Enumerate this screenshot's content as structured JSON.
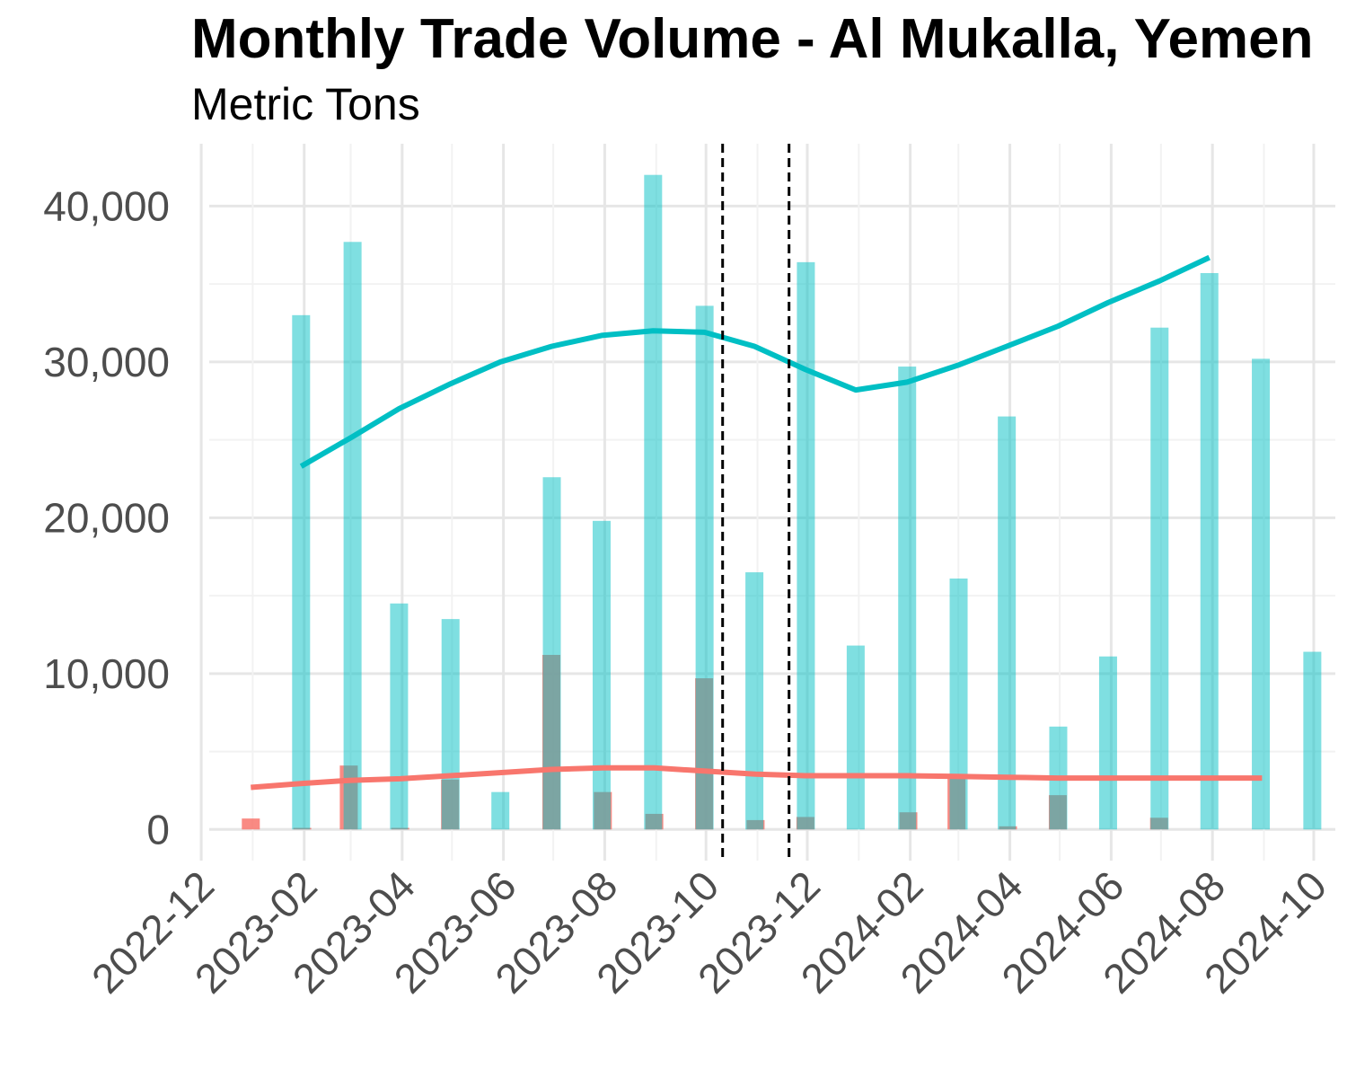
{
  "chart_data": {
    "type": "bar",
    "title": "Monthly Trade Volume - Al Mukalla, Yemen",
    "subtitle": "Metric Tons",
    "xlabel": "",
    "ylabel": "",
    "x_ticks": [
      "2022-12",
      "2023-02",
      "2023-04",
      "2023-06",
      "2023-08",
      "2023-10",
      "2023-12",
      "2024-02",
      "2024-04",
      "2024-06",
      "2024-08",
      "2024-10"
    ],
    "y_ticks": [
      "0",
      "10,000",
      "20,000",
      "30,000",
      "40,000"
    ],
    "ylim": [
      -2000,
      44000
    ],
    "xlim": [
      "2022-11-25",
      "2024-10-14"
    ],
    "grid": true,
    "months": [
      "2023-01",
      "2023-02",
      "2023-03",
      "2023-04",
      "2023-05",
      "2023-06",
      "2023-07",
      "2023-08",
      "2023-09",
      "2023-10",
      "2023-11",
      "2023-12",
      "2024-01",
      "2024-02",
      "2024-03",
      "2024-04",
      "2024-05",
      "2024-06",
      "2024-07",
      "2024-08",
      "2024-09"
    ],
    "series": [
      {
        "color": "#f8766d",
        "bar_opacity": 0.85,
        "values": [
          700,
          100,
          4100,
          100,
          3200,
          0,
          11200,
          2400,
          1000,
          9700,
          600,
          800,
          0,
          1100,
          3300,
          200,
          2200,
          0,
          750,
          0,
          0
        ],
        "trend": [
          2700,
          2950,
          3150,
          3250,
          3450,
          3650,
          3850,
          3950,
          3950,
          3750,
          3550,
          3450,
          3450,
          3450,
          3400,
          3350,
          3300,
          3300,
          3300,
          3300,
          3300
        ]
      },
      {
        "color": "#00bfc4",
        "bar_opacity": 0.5,
        "values": [
          33000,
          37700,
          14500,
          13500,
          2400,
          22600,
          19800,
          42000,
          33600,
          16500,
          36400,
          11800,
          29700,
          16100,
          26500,
          6600,
          11100,
          32200,
          35700,
          30200,
          11400
        ],
        "trend": [
          23300,
          25200,
          27000,
          28600,
          30000,
          31000,
          31700,
          32000,
          31900,
          31000,
          29500,
          28200,
          28700,
          29800,
          31000,
          32300,
          33800,
          35200,
          36700,
          null,
          null
        ]
      }
    ],
    "events": [
      {
        "date": "2023-10-11",
        "style": "dashed",
        "color": "#000000"
      },
      {
        "date": "2023-11-20",
        "style": "dashed",
        "color": "#000000"
      }
    ]
  }
}
